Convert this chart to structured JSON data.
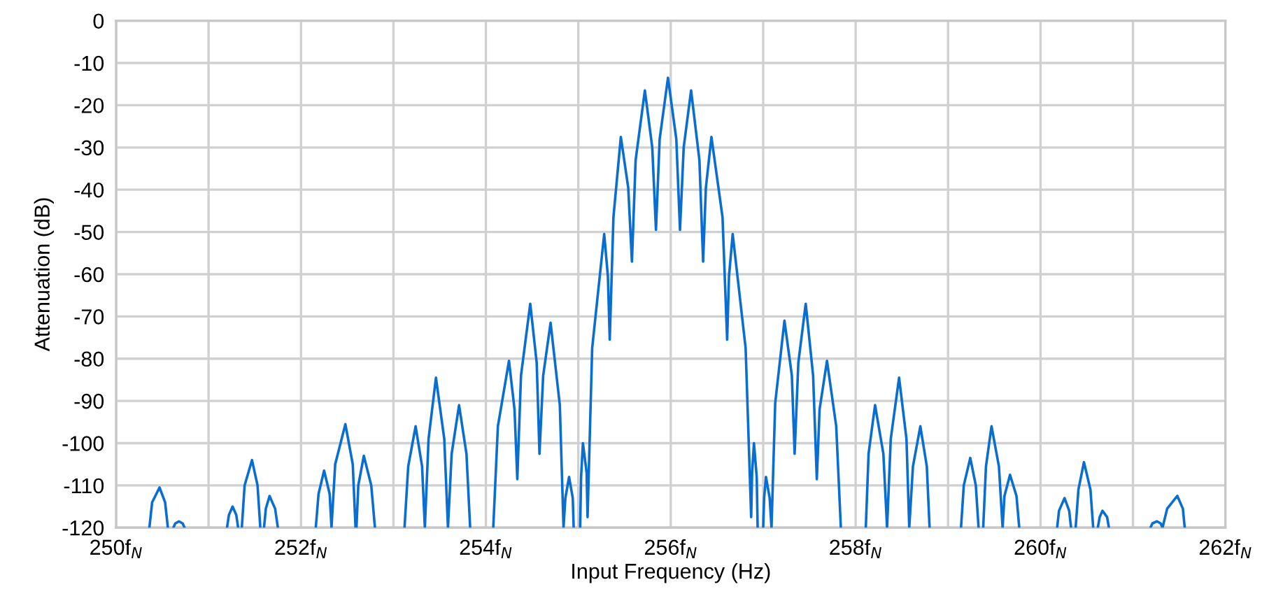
{
  "chart_data": {
    "type": "line",
    "xlabel": "Input Frequency (Hz)",
    "ylabel": "Attenuation (dB)",
    "xlim": [
      250,
      262
    ],
    "ylim": [
      -120,
      0
    ],
    "xticks": [
      {
        "value": 250,
        "label": "250f$_{N}$"
      },
      {
        "value": 251,
        "label": null
      },
      {
        "value": 252,
        "label": "252f$_{N}$"
      },
      {
        "value": 253,
        "label": null
      },
      {
        "value": 254,
        "label": "254f$_{N}$"
      },
      {
        "value": 255,
        "label": null
      },
      {
        "value": 256,
        "label": "256f$_{N}$"
      },
      {
        "value": 257,
        "label": null
      },
      {
        "value": 258,
        "label": "258f$_{N}$"
      },
      {
        "value": 259,
        "label": null
      },
      {
        "value": 260,
        "label": "260f$_{N}$"
      },
      {
        "value": 261,
        "label": null
      },
      {
        "value": 262,
        "label": "262f$_{N}$"
      }
    ],
    "yticks": [
      0,
      -10,
      -20,
      -30,
      -40,
      -50,
      -60,
      -70,
      -80,
      -90,
      -100,
      -110,
      -120
    ],
    "grid": true,
    "marker": "none",
    "line_style": "solid",
    "series": [
      {
        "color": "#0a6ed1",
        "x": [
          250.36,
          250.39,
          250.47,
          250.53,
          250.56,
          250.59,
          250.62,
          250.64,
          250.68,
          250.72,
          250.74,
          250.97,
          251.2,
          251.22,
          251.26,
          251.3,
          251.32,
          251.34,
          251.36,
          251.39,
          251.47,
          251.53,
          251.56,
          251.58,
          251.6,
          251.62,
          251.66,
          251.72,
          251.75,
          251.95,
          252.16,
          252.19,
          252.25,
          252.31,
          252.33,
          252.37,
          252.48,
          252.56,
          252.59,
          252.595,
          252.6,
          252.62,
          252.68,
          252.76,
          252.8,
          252.96,
          253.12,
          253.16,
          253.24,
          253.31,
          253.34,
          253.38,
          253.46,
          253.55,
          253.59,
          253.63,
          253.71,
          253.79,
          253.83,
          253.95,
          254.08,
          254.13,
          254.25,
          254.31,
          254.34,
          254.38,
          254.48,
          254.55,
          254.58,
          254.62,
          254.7,
          254.8,
          254.84,
          254.86,
          254.9,
          254.94,
          254.95,
          254.985,
          255.02,
          255.03,
          255.05,
          255.09,
          255.1,
          255.15,
          255.28,
          255.32,
          255.34,
          255.38,
          255.46,
          255.54,
          255.58,
          255.62,
          255.72,
          255.8,
          255.84,
          255.88,
          255.97,
          256.06,
          256.1,
          256.14,
          256.22,
          256.31,
          256.35,
          256.38,
          256.44,
          256.56,
          256.61,
          256.63,
          256.67,
          256.81,
          256.87,
          256.88,
          256.9,
          256.93,
          256.94,
          256.97,
          257.0,
          257.01,
          257.03,
          257.07,
          257.09,
          257.13,
          257.23,
          257.31,
          257.34,
          257.38,
          257.46,
          257.54,
          257.58,
          257.61,
          257.69,
          257.79,
          257.84,
          257.97,
          258.11,
          258.14,
          258.21,
          258.3,
          258.34,
          258.38,
          258.47,
          258.55,
          258.58,
          258.62,
          258.7,
          258.77,
          258.8,
          258.97,
          259.14,
          259.17,
          259.24,
          259.3,
          259.33,
          259.355,
          259.38,
          259.41,
          259.47,
          259.55,
          259.59,
          259.61,
          259.67,
          259.74,
          259.77,
          259.97,
          260.18,
          260.2,
          260.26,
          260.31,
          260.33,
          260.355,
          260.38,
          260.41,
          260.47,
          260.54,
          260.57,
          260.595,
          260.62,
          260.64,
          260.67,
          260.72,
          260.74,
          260.96,
          261.19,
          261.21,
          261.26,
          261.3,
          261.32,
          261.37,
          261.48,
          261.54,
          261.56
        ],
        "values": [
          -120,
          -114,
          -110.5,
          -114,
          -120,
          null,
          -120,
          -119,
          -118.5,
          -119,
          -120,
          null,
          -120,
          -117,
          -115,
          -117,
          -120,
          null,
          -120,
          -110,
          -104,
          -110,
          -120,
          null,
          -120,
          -115.5,
          -112.5,
          -115.5,
          -120,
          null,
          -120,
          -112,
          -106.5,
          -112,
          -120,
          -105,
          -95.5,
          -105,
          -120,
          null,
          -120,
          -110,
          -103,
          -110,
          -120,
          null,
          -120,
          -105.5,
          -96,
          -105.5,
          -120,
          -99,
          -84.5,
          -99,
          -120,
          -102.5,
          -91,
          -102.5,
          -120,
          null,
          -120,
          -96,
          -80.5,
          -92,
          -108.5,
          -84,
          -67,
          -81,
          -102.5,
          -84,
          -71.5,
          -91,
          -120,
          -113,
          -108,
          -113,
          -120,
          null,
          -120,
          -108,
          -100,
          -107,
          -117.5,
          -77.5,
          -50.5,
          -60.5,
          -75.5,
          -46.5,
          -27.5,
          -39.5,
          -57,
          -33,
          -16.5,
          -30,
          -49.5,
          -28,
          -13.5,
          -28,
          -49.5,
          -30,
          -16.5,
          -33,
          -57,
          -39.5,
          -27.5,
          -46.5,
          -75.5,
          -60.5,
          -50.5,
          -77.5,
          -117.5,
          -107,
          -100,
          -108,
          -120,
          null,
          -120,
          -113,
          -108,
          -113,
          -120,
          -90.5,
          -71,
          -84,
          -102.5,
          -81,
          -67,
          -84,
          -108.5,
          -92,
          -80.5,
          -96,
          -120,
          null,
          -120,
          -102.5,
          -91,
          -102.5,
          -120,
          -99,
          -84.5,
          -99,
          -120,
          -105.5,
          -96,
          -105.5,
          -120,
          null,
          -120,
          -110,
          -103.5,
          -110,
          -120,
          null,
          -120,
          -105.5,
          -96,
          -105.5,
          -120,
          -112.5,
          -107.5,
          -112.5,
          -120,
          null,
          -120,
          -116,
          -113,
          -116,
          -120,
          null,
          -120,
          -111,
          -104.5,
          -111,
          -120,
          null,
          -120,
          -117.5,
          -116,
          -117.5,
          -120,
          null,
          -120,
          -119,
          -118.5,
          -119,
          -120,
          -115.5,
          -112.5,
          -115.5,
          -120
        ]
      }
    ]
  }
}
